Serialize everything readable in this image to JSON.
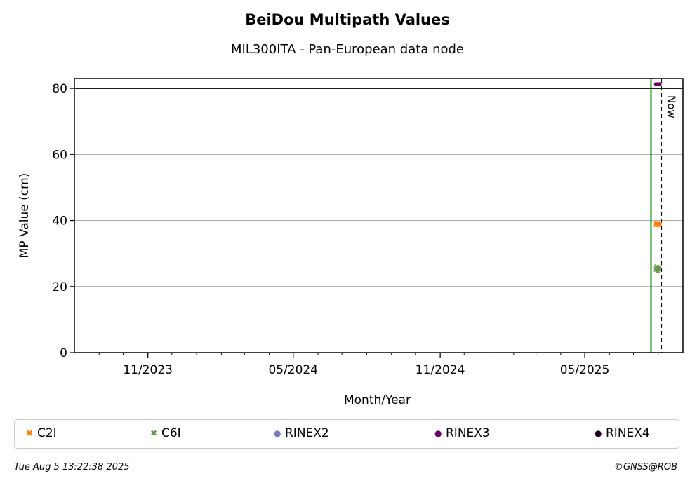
{
  "chart_data": {
    "type": "scatter",
    "title": "BeiDou Multipath Values",
    "subtitle": "MIL300ITA - Pan-European data node",
    "xlabel": "Month/Year",
    "ylabel": "MP Value (cm)",
    "xlim": [
      "2023-08-01",
      "2025-09-01"
    ],
    "ylim": [
      0,
      83
    ],
    "x_ticks": [
      {
        "date": "2023-11-01",
        "label": "11/2023"
      },
      {
        "date": "2024-05-01",
        "label": "05/2024"
      },
      {
        "date": "2024-11-01",
        "label": "11/2024"
      },
      {
        "date": "2025-05-01",
        "label": "05/2025"
      }
    ],
    "y_ticks": [
      0,
      20,
      40,
      60,
      80
    ],
    "grid": "horizontal",
    "reference_lines": {
      "horizontal_y": 80,
      "vertical_solid_date": "2025-07-23",
      "now_date": "2025-08-05",
      "now_label": "Now"
    },
    "series": [
      {
        "name": "C2I",
        "marker": "x",
        "color": "#ff7f0e",
        "points": [
          {
            "x": "2025-07-29",
            "y": 39.0
          },
          {
            "x": "2025-07-29",
            "y": 38.6
          },
          {
            "x": "2025-07-30",
            "y": 39.3
          },
          {
            "x": "2025-07-30",
            "y": 38.9
          },
          {
            "x": "2025-07-31",
            "y": 39.1
          },
          {
            "x": "2025-07-31",
            "y": 38.7
          },
          {
            "x": "2025-08-01",
            "y": 38.8
          },
          {
            "x": "2025-08-01",
            "y": 39.2
          },
          {
            "x": "2025-08-02",
            "y": 38.9
          },
          {
            "x": "2025-08-02",
            "y": 38.5
          },
          {
            "x": "2025-08-03",
            "y": 39.0
          },
          {
            "x": "2025-08-03",
            "y": 38.7
          }
        ]
      },
      {
        "name": "C6I",
        "marker": "x",
        "color": "#6a994e",
        "points": [
          {
            "x": "2025-07-29",
            "y": 25.6
          },
          {
            "x": "2025-07-29",
            "y": 25.0
          },
          {
            "x": "2025-07-30",
            "y": 26.1
          },
          {
            "x": "2025-07-30",
            "y": 25.4
          },
          {
            "x": "2025-07-31",
            "y": 25.8
          },
          {
            "x": "2025-07-31",
            "y": 24.9
          },
          {
            "x": "2025-08-01",
            "y": 25.3
          },
          {
            "x": "2025-08-01",
            "y": 24.6
          },
          {
            "x": "2025-08-02",
            "y": 25.5
          },
          {
            "x": "2025-08-03",
            "y": 26.0
          }
        ]
      },
      {
        "name": "RINEX2",
        "marker": "dot",
        "color": "#7b7bbb",
        "points": []
      },
      {
        "name": "RINEX3",
        "marker": "dot",
        "color": "#6b0061",
        "points": [
          {
            "x": "2025-07-29",
            "y": 81.3
          },
          {
            "x": "2025-07-30",
            "y": 81.3
          },
          {
            "x": "2025-07-31",
            "y": 81.3
          },
          {
            "x": "2025-08-01",
            "y": 81.3
          },
          {
            "x": "2025-08-02",
            "y": 81.3
          },
          {
            "x": "2025-08-03",
            "y": 81.3
          }
        ]
      },
      {
        "name": "RINEX4",
        "marker": "dot",
        "color": "#200020",
        "points": []
      }
    ],
    "legend_position": "bottom"
  },
  "footer": {
    "timestamp": "Tue Aug  5 13:22:38 2025",
    "credit": "©GNSS@ROB"
  }
}
